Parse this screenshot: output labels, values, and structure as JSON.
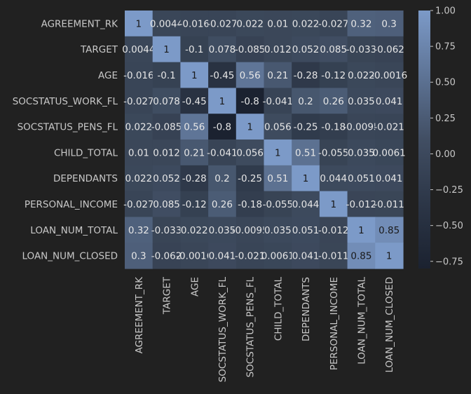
{
  "chart_data": {
    "type": "heatmap",
    "title": "",
    "xlabel": "",
    "ylabel": "",
    "variables": [
      "AGREEMENT_RK",
      "TARGET",
      "AGE",
      "SOCSTATUS_WORK_FL",
      "SOCSTATUS_PENS_FL",
      "CHILD_TOTAL",
      "DEPENDANTS",
      "PERSONAL_INCOME",
      "LOAN_NUM_TOTAL",
      "LOAN_NUM_CLOSED"
    ],
    "values": [
      [
        1,
        0.0044,
        -0.016,
        -0.027,
        0.022,
        0.01,
        0.022,
        -0.027,
        0.32,
        0.3
      ],
      [
        0.0044,
        1,
        -0.1,
        0.078,
        -0.085,
        0.012,
        0.052,
        0.085,
        -0.033,
        -0.062
      ],
      [
        -0.016,
        -0.1,
        1,
        -0.45,
        0.56,
        0.21,
        -0.28,
        -0.12,
        0.022,
        -0.0016
      ],
      [
        -0.027,
        0.078,
        -0.45,
        1,
        -0.8,
        -0.041,
        0.2,
        0.26,
        0.035,
        0.041
      ],
      [
        0.022,
        -0.085,
        0.56,
        -0.8,
        1,
        0.056,
        -0.25,
        -0.18,
        -0.0095,
        -0.021
      ],
      [
        0.01,
        0.012,
        0.21,
        -0.041,
        0.056,
        1,
        0.51,
        -0.055,
        0.035,
        0.0061
      ],
      [
        0.022,
        0.052,
        -0.28,
        0.2,
        -0.25,
        0.51,
        1,
        0.044,
        0.051,
        0.041
      ],
      [
        -0.027,
        0.085,
        -0.12,
        0.26,
        -0.18,
        -0.055,
        0.044,
        1,
        -0.012,
        -0.011
      ],
      [
        0.32,
        -0.033,
        0.022,
        0.035,
        -0.0095,
        0.035,
        0.051,
        -0.012,
        1,
        0.85
      ],
      [
        0.3,
        -0.062,
        -0.0016,
        0.041,
        -0.021,
        0.0061,
        0.041,
        -0.011,
        0.85,
        1
      ]
    ],
    "cell_labels": [
      [
        "1",
        "0.0044",
        "-0.016",
        "-0.027",
        "0.022",
        "0.01",
        "0.022",
        "-0.027",
        "0.32",
        "0.3"
      ],
      [
        "0.0044",
        "1",
        "-0.1",
        "0.078",
        "-0.085",
        "0.012",
        "0.052",
        "0.085",
        "-0.033",
        "-0.062"
      ],
      [
        "-0.016",
        "-0.1",
        "1",
        "-0.45",
        "0.56",
        "0.21",
        "-0.28",
        "-0.12",
        "0.022",
        "-0.0016"
      ],
      [
        "-0.027",
        "0.078",
        "-0.45",
        "1",
        "-0.8",
        "-0.041",
        "0.2",
        "0.26",
        "0.035",
        "0.041"
      ],
      [
        "0.022",
        "-0.085",
        "0.56",
        "-0.8",
        "1",
        "0.056",
        "-0.25",
        "-0.18",
        "-0.0095",
        "-0.021"
      ],
      [
        "0.01",
        "0.012",
        "0.21",
        "-0.041",
        "0.056",
        "1",
        "0.51",
        "-0.055",
        "0.035",
        "0.0061"
      ],
      [
        "0.022",
        "0.052",
        "-0.28",
        "0.2",
        "-0.25",
        "0.51",
        "1",
        "0.044",
        "0.051",
        "0.041"
      ],
      [
        "-0.027",
        "0.085",
        "-0.12",
        "0.26",
        "-0.18",
        "-0.055",
        "0.044",
        "1",
        "-0.012",
        "-0.011"
      ],
      [
        "0.32",
        "-0.033",
        "0.022",
        "0.035",
        "-0.0095",
        "0.035",
        "0.051",
        "-0.012",
        "1",
        "0.85"
      ],
      [
        "0.3",
        "-0.062",
        "-0.0016",
        "0.041",
        "-0.021",
        "0.0061",
        "0.041",
        "-0.011",
        "0.85",
        "1"
      ]
    ],
    "colorbar": {
      "range": [
        -0.8,
        1.0
      ],
      "ticks": [
        1.0,
        0.75,
        0.5,
        0.25,
        0.0,
        -0.25,
        -0.5,
        -0.75
      ],
      "tick_labels": [
        "1.00",
        "0.75",
        "0.50",
        "0.25",
        "0.00",
        "−0.25",
        "−0.50",
        "−0.75"
      ],
      "placement": "right"
    },
    "colormap": {
      "low": "#1b2230",
      "mid": "#3a4658",
      "high": "#7c9ac8"
    },
    "grid": false
  }
}
